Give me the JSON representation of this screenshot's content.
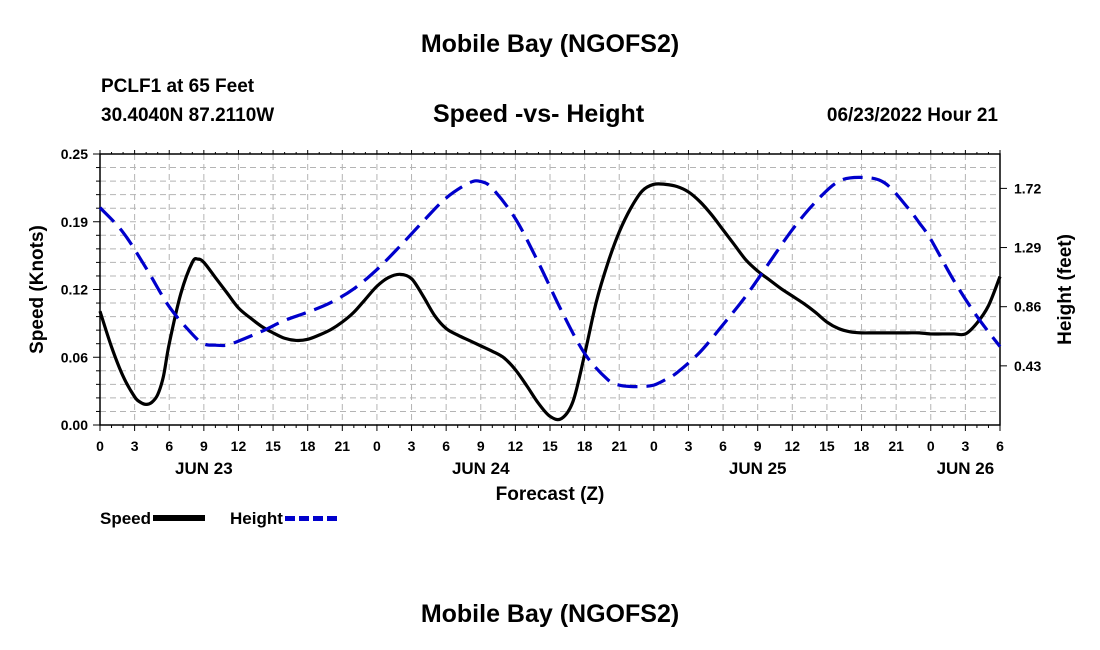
{
  "header": {
    "title": "Mobile Bay (NGOFS2)",
    "station": "PCLF1 at 65 Feet",
    "coordinates": "30.4040N  87.2110W",
    "chart_title": "Speed -vs- Height",
    "timestamp": "06/23/2022 Hour 21"
  },
  "footer": {
    "title": "Mobile Bay (NGOFS2)"
  },
  "legend": {
    "speed_label": "Speed",
    "height_label": "Height"
  },
  "colors": {
    "speed": "#000000",
    "height": "#0000cc",
    "grid": "#b4b4b4"
  },
  "chart_data": {
    "type": "line",
    "xlabel": "Forecast (Z)",
    "ylabel_left": "Speed (Knots)",
    "ylabel_right": "Height (feet)",
    "x_tick_labels": [
      "0",
      "3",
      "6",
      "9",
      "12",
      "15",
      "18",
      "21",
      "0",
      "3",
      "6",
      "9",
      "12",
      "15",
      "18",
      "21",
      "0",
      "3",
      "6",
      "9",
      "12",
      "15",
      "18",
      "21",
      "0",
      "3",
      "6"
    ],
    "date_labels": [
      {
        "label": "JUN 23",
        "hour": 9
      },
      {
        "label": "JUN 24",
        "hour": 33
      },
      {
        "label": "JUN 25",
        "hour": 57
      },
      {
        "label": "JUN 26",
        "hour": 75
      }
    ],
    "xlim": [
      0,
      78
    ],
    "ylim_left": [
      0,
      0.25
    ],
    "ylim_right": [
      0,
      1.97
    ],
    "yticks_left": [
      "0.00",
      "0.06",
      "0.12",
      "0.19",
      "0.25"
    ],
    "yticks_right": [
      "0.43",
      "0.86",
      "1.29",
      "1.72"
    ],
    "grid": true,
    "series": [
      {
        "name": "Speed",
        "axis": "left",
        "style": "solid",
        "x": [
          0,
          1,
          2,
          3,
          3.5,
          4,
          4.5,
          5,
          5.5,
          6,
          7,
          8,
          8.5,
          9,
          10,
          11,
          12,
          13,
          14,
          15,
          16,
          17,
          18,
          19,
          20,
          21,
          22,
          23,
          24,
          25,
          26,
          27,
          28,
          29,
          30,
          31,
          32,
          33,
          34,
          35,
          36,
          37,
          38,
          39,
          40,
          41,
          42,
          43,
          44,
          45,
          46,
          47,
          48,
          49,
          50,
          51,
          52,
          53,
          54,
          55,
          56,
          57,
          58,
          59,
          60,
          61,
          62,
          63,
          64,
          65,
          66,
          67,
          68,
          69,
          70,
          71,
          72,
          73,
          74,
          75,
          76,
          77,
          78
        ],
        "y": [
          0.105,
          0.072,
          0.045,
          0.026,
          0.021,
          0.019,
          0.021,
          0.028,
          0.045,
          0.075,
          0.121,
          0.15,
          0.153,
          0.15,
          0.136,
          0.122,
          0.108,
          0.099,
          0.091,
          0.085,
          0.08,
          0.078,
          0.079,
          0.083,
          0.088,
          0.095,
          0.104,
          0.116,
          0.128,
          0.136,
          0.139,
          0.135,
          0.119,
          0.101,
          0.089,
          0.083,
          0.078,
          0.073,
          0.068,
          0.062,
          0.051,
          0.036,
          0.02,
          0.008,
          0.006,
          0.022,
          0.065,
          0.113,
          0.149,
          0.178,
          0.2,
          0.216,
          0.222,
          0.222,
          0.22,
          0.215,
          0.206,
          0.194,
          0.18,
          0.166,
          0.152,
          0.142,
          0.134,
          0.126,
          0.119,
          0.112,
          0.104,
          0.095,
          0.089,
          0.086,
          0.085,
          0.085,
          0.085,
          0.085,
          0.085,
          0.085,
          0.084,
          0.084,
          0.084,
          0.084,
          0.094,
          0.11,
          0.137
        ]
      },
      {
        "name": "Height",
        "axis": "right",
        "style": "dashed",
        "x": [
          0,
          2,
          4,
          6,
          8,
          9,
          10,
          11,
          12,
          14,
          16,
          18,
          20,
          22,
          24,
          26,
          28,
          30,
          32,
          33,
          34,
          36,
          38,
          40,
          42,
          44,
          45,
          46,
          47,
          48,
          49,
          50,
          52,
          54,
          56,
          58,
          60,
          62,
          64,
          66,
          68,
          70,
          71,
          72,
          74,
          76,
          78
        ],
        "y": [
          1.58,
          1.4,
          1.14,
          0.86,
          0.66,
          0.59,
          0.58,
          0.58,
          0.61,
          0.68,
          0.76,
          0.82,
          0.89,
          0.99,
          1.13,
          1.3,
          1.48,
          1.65,
          1.76,
          1.77,
          1.72,
          1.5,
          1.18,
          0.83,
          0.52,
          0.33,
          0.29,
          0.28,
          0.28,
          0.29,
          0.33,
          0.38,
          0.53,
          0.73,
          0.94,
          1.18,
          1.42,
          1.62,
          1.77,
          1.8,
          1.76,
          1.58,
          1.47,
          1.35,
          1.05,
          0.79,
          0.57
        ]
      }
    ]
  }
}
